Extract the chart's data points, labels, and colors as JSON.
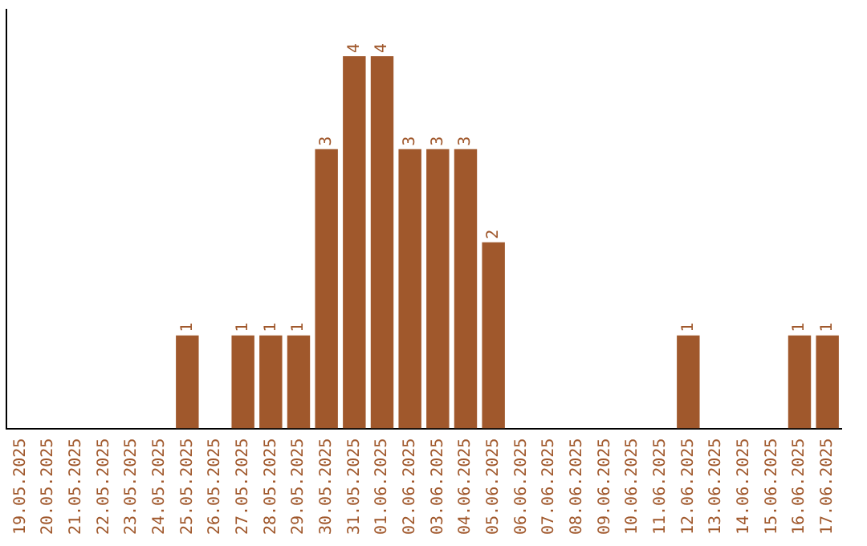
{
  "chart_data": {
    "type": "bar",
    "categories": [
      "19.05.2025",
      "20.05.2025",
      "21.05.2025",
      "22.05.2025",
      "23.05.2025",
      "24.05.2025",
      "25.05.2025",
      "26.05.2025",
      "27.05.2025",
      "28.05.2025",
      "29.05.2025",
      "30.05.2025",
      "31.05.2025",
      "01.06.2025",
      "02.06.2025",
      "03.06.2025",
      "04.06.2025",
      "05.06.2025",
      "06.06.2025",
      "07.06.2025",
      "08.06.2025",
      "09.06.2025",
      "10.06.2025",
      "11.06.2025",
      "12.06.2025",
      "13.06.2025",
      "14.06.2025",
      "15.06.2025",
      "16.06.2025",
      "17.06.2025"
    ],
    "values": [
      0,
      0,
      0,
      0,
      0,
      0,
      1,
      0,
      1,
      1,
      1,
      3,
      4,
      4,
      3,
      3,
      3,
      2,
      0,
      0,
      0,
      0,
      0,
      0,
      1,
      0,
      0,
      0,
      1,
      1
    ],
    "value_labels": [
      null,
      null,
      null,
      null,
      null,
      null,
      "1",
      null,
      "1",
      "1",
      "1",
      "3",
      "4",
      "4",
      "3",
      "3",
      "3",
      "2",
      null,
      null,
      null,
      null,
      null,
      null,
      "1",
      null,
      null,
      null,
      "1",
      "1"
    ],
    "color": "#a0582c",
    "tick_labels": "x",
    "grid": false,
    "legend": false
  }
}
